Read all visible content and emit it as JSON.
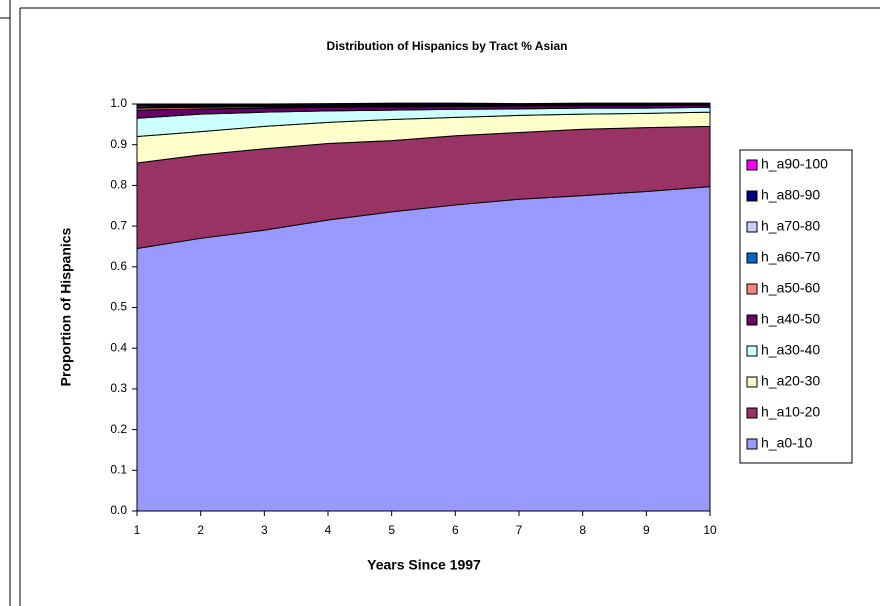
{
  "chart_data": {
    "type": "stacked_area",
    "title": "Distribution of Hispanics by Tract % Asian",
    "x_label": "Years Since 1997",
    "y_label": "Proportion of Hispanics",
    "x": [
      1,
      2,
      3,
      4,
      5,
      6,
      7,
      8,
      9,
      10
    ],
    "xlim": [
      1,
      10
    ],
    "xticks": [
      1,
      2,
      3,
      4,
      5,
      6,
      7,
      8,
      9,
      10
    ],
    "ylim": [
      0,
      1
    ],
    "yticks": [
      {
        "value": 0,
        "label": "0.0"
      },
      0.1,
      0.2,
      0.3,
      0.4,
      0.5,
      0.6,
      0.7,
      0.8,
      0.9,
      {
        "value": 1,
        "label": "1.0"
      }
    ],
    "legend": "right",
    "series": [
      {
        "name": "h_a0-10",
        "color": "#9999ff",
        "values": [
          0.645,
          0.67,
          0.69,
          0.715,
          0.735,
          0.752,
          0.766,
          0.775,
          0.785,
          0.797
        ]
      },
      {
        "name": "h_a10-20",
        "color": "#993366",
        "values": [
          0.21,
          0.205,
          0.2,
          0.188,
          0.175,
          0.17,
          0.164,
          0.163,
          0.157,
          0.148
        ]
      },
      {
        "name": "h_a20-30",
        "color": "#ffffcc",
        "values": [
          0.065,
          0.057,
          0.055,
          0.052,
          0.052,
          0.045,
          0.042,
          0.037,
          0.035,
          0.035
        ]
      },
      {
        "name": "h_a30-40",
        "color": "#ccffff",
        "values": [
          0.045,
          0.043,
          0.035,
          0.028,
          0.023,
          0.02,
          0.016,
          0.015,
          0.013,
          0.012
        ]
      },
      {
        "name": "h_a40-50",
        "color": "#660066",
        "values": [
          0.02,
          0.013,
          0.01,
          0.009,
          0.008,
          0.007,
          0.007,
          0.006,
          0.006,
          0.005
        ]
      },
      {
        "name": "h_a50-60",
        "color": "#ff8080",
        "values": [
          0.005,
          0.004,
          0.003,
          0.002,
          0.002,
          0.002,
          0.001,
          0.001,
          0.001,
          0.001
        ]
      },
      {
        "name": "h_a60-70",
        "color": "#0066cc",
        "values": [
          0.002,
          0.002,
          0.002,
          0.001,
          0.001,
          0.001,
          0.001,
          0.001,
          0.001,
          0.001
        ]
      },
      {
        "name": "h_a70-80",
        "color": "#ccccff",
        "values": [
          0.003,
          0.002,
          0.002,
          0.002,
          0.002,
          0.001,
          0.001,
          0.001,
          0.001,
          0.001
        ]
      },
      {
        "name": "h_a80-90",
        "color": "#000080",
        "values": [
          0.004,
          0.003,
          0.002,
          0.003,
          0.003,
          0.003,
          0.002,
          0.002,
          0.002,
          0.001
        ]
      },
      {
        "name": "h_a90-100",
        "color": "#ff00ff",
        "values": [
          0.001,
          0.001,
          0.001,
          0.001,
          0.001,
          0.001,
          0.001,
          0.001,
          0.001,
          0.001
        ]
      }
    ]
  }
}
